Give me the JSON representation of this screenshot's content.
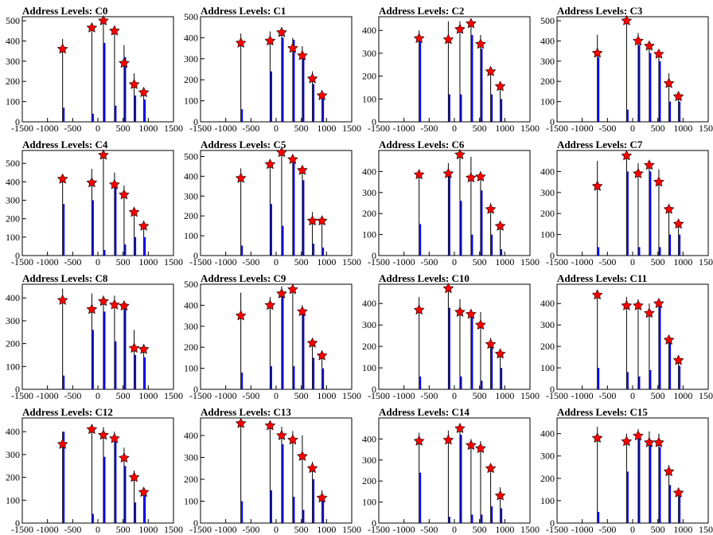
{
  "colors": {
    "background": "#ffffff",
    "axis": "#000000",
    "hist_blue": "#0000ff",
    "hist_black": "#000000",
    "marker_red": "#ff0000"
  },
  "axes_common": {
    "xlim": [
      -1500,
      1500
    ],
    "xticks": [
      -1500,
      -1000,
      -500,
      0,
      500,
      1000,
      1500
    ],
    "grid": false
  },
  "chart_data": [
    {
      "type": "bar",
      "title": "Address Levels: C0",
      "ylim": [
        0,
        520
      ],
      "yticks": [
        0,
        100,
        200,
        300,
        400,
        500
      ],
      "peaks_x": [
        -700,
        -120,
        110,
        330,
        520,
        720,
        910
      ],
      "black_heights": [
        410,
        470,
        500,
        440,
        380,
        240,
        170
      ],
      "blue_heights": [
        70,
        40,
        390,
        80,
        320,
        130,
        110
      ],
      "markers_y": [
        360,
        465,
        500,
        450,
        290,
        185,
        145
      ]
    },
    {
      "type": "bar",
      "title": "Address Levels: C1",
      "ylim": [
        0,
        500
      ],
      "yticks": [
        0,
        100,
        200,
        300,
        400,
        500
      ],
      "peaks_x": [
        -700,
        -120,
        110,
        330,
        520,
        720,
        910
      ],
      "black_heights": [
        420,
        430,
        450,
        400,
        360,
        240,
        140
      ],
      "blue_heights": [
        60,
        240,
        400,
        390,
        300,
        180,
        110
      ],
      "markers_y": [
        375,
        385,
        425,
        350,
        315,
        205,
        125
      ]
    },
    {
      "type": "bar",
      "title": "Address Levels: C2",
      "ylim": [
        0,
        460
      ],
      "yticks": [
        0,
        100,
        200,
        300,
        400
      ],
      "peaks_x": [
        -700,
        -120,
        110,
        330,
        520,
        720,
        910
      ],
      "black_heights": [
        400,
        440,
        440,
        440,
        380,
        240,
        170
      ],
      "blue_heights": [
        360,
        120,
        120,
        380,
        320,
        120,
        100
      ],
      "markers_y": [
        365,
        360,
        405,
        430,
        340,
        220,
        155
      ]
    },
    {
      "type": "bar",
      "title": "Address Levels: C3",
      "ylim": [
        0,
        520
      ],
      "yticks": [
        0,
        100,
        200,
        300,
        400,
        500
      ],
      "peaks_x": [
        -700,
        -120,
        110,
        330,
        520,
        720,
        910
      ],
      "black_heights": [
        430,
        520,
        440,
        400,
        340,
        240,
        150
      ],
      "blue_heights": [
        320,
        60,
        380,
        340,
        300,
        100,
        100
      ],
      "markers_y": [
        340,
        500,
        400,
        375,
        335,
        190,
        125
      ]
    },
    {
      "type": "bar",
      "title": "Address Levels: C4",
      "ylim": [
        0,
        570
      ],
      "yticks": [
        0,
        100,
        200,
        300,
        400,
        500
      ],
      "peaks_x": [
        -700,
        -120,
        110,
        330,
        520,
        720,
        910
      ],
      "black_heights": [
        440,
        470,
        560,
        450,
        380,
        250,
        180
      ],
      "blue_heights": [
        280,
        300,
        30,
        380,
        60,
        100,
        100
      ],
      "markers_y": [
        415,
        395,
        545,
        385,
        330,
        235,
        160
      ]
    },
    {
      "type": "bar",
      "title": "Address Levels: C5",
      "ylim": [
        0,
        530
      ],
      "yticks": [
        0,
        100,
        200,
        300,
        400,
        500
      ],
      "peaks_x": [
        -700,
        -120,
        110,
        330,
        520,
        720,
        910
      ],
      "black_heights": [
        440,
        480,
        540,
        510,
        440,
        220,
        180
      ],
      "blue_heights": [
        50,
        260,
        150,
        480,
        380,
        60,
        40
      ],
      "markers_y": [
        390,
        460,
        520,
        485,
        430,
        175,
        175
      ]
    },
    {
      "type": "bar",
      "title": "Address Levels: C6",
      "ylim": [
        0,
        500
      ],
      "yticks": [
        0,
        100,
        200,
        300,
        400
      ],
      "peaks_x": [
        -700,
        -120,
        110,
        330,
        520,
        720,
        910
      ],
      "black_heights": [
        400,
        440,
        480,
        470,
        400,
        250,
        160
      ],
      "blue_heights": [
        150,
        400,
        260,
        100,
        310,
        100,
        30
      ],
      "markers_y": [
        385,
        390,
        480,
        370,
        375,
        220,
        140
      ]
    },
    {
      "type": "bar",
      "title": "Address Levels: C7",
      "ylim": [
        0,
        500
      ],
      "yticks": [
        0,
        100,
        200,
        300,
        400
      ],
      "peaks_x": [
        -700,
        -120,
        110,
        330,
        520,
        720,
        910
      ],
      "black_heights": [
        450,
        490,
        440,
        440,
        410,
        240,
        170
      ],
      "blue_heights": [
        40,
        400,
        40,
        400,
        40,
        100,
        100
      ],
      "markers_y": [
        330,
        475,
        390,
        430,
        350,
        220,
        150
      ]
    },
    {
      "type": "bar",
      "title": "Address Levels: C8",
      "ylim": [
        0,
        460
      ],
      "yticks": [
        0,
        100,
        200,
        300,
        400
      ],
      "peaks_x": [
        -700,
        -120,
        110,
        330,
        520,
        720,
        910
      ],
      "black_heights": [
        440,
        420,
        410,
        410,
        380,
        260,
        180
      ],
      "blue_heights": [
        60,
        260,
        340,
        210,
        350,
        150,
        140
      ],
      "markers_y": [
        390,
        350,
        385,
        370,
        365,
        180,
        175
      ]
    },
    {
      "type": "bar",
      "title": "Address Levels: C9",
      "ylim": [
        0,
        500
      ],
      "yticks": [
        0,
        100,
        200,
        300,
        400,
        500
      ],
      "peaks_x": [
        -700,
        -120,
        110,
        330,
        520,
        720,
        910
      ],
      "black_heights": [
        460,
        440,
        490,
        500,
        400,
        240,
        180
      ],
      "blue_heights": [
        80,
        110,
        460,
        110,
        360,
        150,
        100
      ],
      "markers_y": [
        350,
        400,
        455,
        475,
        370,
        220,
        160
      ]
    },
    {
      "type": "bar",
      "title": "Address Levels: C10",
      "ylim": [
        0,
        490
      ],
      "yticks": [
        0,
        100,
        200,
        300,
        400
      ],
      "peaks_x": [
        -700,
        -120,
        110,
        330,
        520,
        720,
        910
      ],
      "black_heights": [
        430,
        480,
        420,
        370,
        360,
        240,
        180
      ],
      "blue_heights": [
        60,
        380,
        60,
        350,
        40,
        200,
        100
      ],
      "markers_y": [
        370,
        470,
        360,
        350,
        300,
        210,
        165
      ]
    },
    {
      "type": "bar",
      "title": "Address Levels: C11",
      "ylim": [
        0,
        490
      ],
      "yticks": [
        0,
        100,
        200,
        300,
        400
      ],
      "peaks_x": [
        -700,
        -120,
        110,
        330,
        520,
        720,
        910
      ],
      "black_heights": [
        450,
        430,
        420,
        400,
        410,
        250,
        150
      ],
      "blue_heights": [
        100,
        80,
        60,
        90,
        400,
        220,
        110
      ],
      "markers_y": [
        440,
        390,
        390,
        355,
        400,
        230,
        135
      ]
    },
    {
      "type": "bar",
      "title": "Address Levels: C12",
      "ylim": [
        0,
        460
      ],
      "yticks": [
        0,
        100,
        200,
        300,
        400
      ],
      "peaks_x": [
        -700,
        -120,
        110,
        330,
        520,
        720,
        910
      ],
      "black_heights": [
        400,
        430,
        420,
        400,
        330,
        230,
        150
      ],
      "blue_heights": [
        400,
        40,
        290,
        360,
        250,
        90,
        120
      ],
      "markers_y": [
        345,
        410,
        385,
        370,
        285,
        200,
        135
      ]
    },
    {
      "type": "bar",
      "title": "Address Levels: C13",
      "ylim": [
        0,
        480
      ],
      "yticks": [
        0,
        100,
        200,
        300,
        400
      ],
      "peaks_x": [
        -700,
        -120,
        110,
        330,
        520,
        720,
        910
      ],
      "black_heights": [
        460,
        450,
        440,
        420,
        400,
        280,
        150
      ],
      "blue_heights": [
        100,
        150,
        360,
        120,
        60,
        200,
        120
      ],
      "markers_y": [
        455,
        445,
        400,
        380,
        305,
        250,
        115
      ]
    },
    {
      "type": "bar",
      "title": "Address Levels: C14",
      "ylim": [
        0,
        500
      ],
      "yticks": [
        0,
        100,
        200,
        300,
        400
      ],
      "peaks_x": [
        -700,
        -120,
        110,
        330,
        520,
        720,
        910
      ],
      "black_heights": [
        430,
        440,
        440,
        400,
        390,
        280,
        170
      ],
      "blue_heights": [
        240,
        30,
        420,
        40,
        40,
        80,
        70
      ],
      "markers_y": [
        390,
        395,
        450,
        370,
        355,
        260,
        130
      ]
    },
    {
      "type": "bar",
      "title": "Address Levels: C15",
      "ylim": [
        0,
        470
      ],
      "yticks": [
        0,
        100,
        200,
        300,
        400
      ],
      "peaks_x": [
        -700,
        -120,
        110,
        330,
        520,
        720,
        910
      ],
      "black_heights": [
        430,
        400,
        420,
        410,
        400,
        260,
        150
      ],
      "blue_heights": [
        50,
        230,
        380,
        350,
        340,
        170,
        120
      ],
      "markers_y": [
        380,
        365,
        390,
        360,
        360,
        230,
        135
      ]
    }
  ]
}
